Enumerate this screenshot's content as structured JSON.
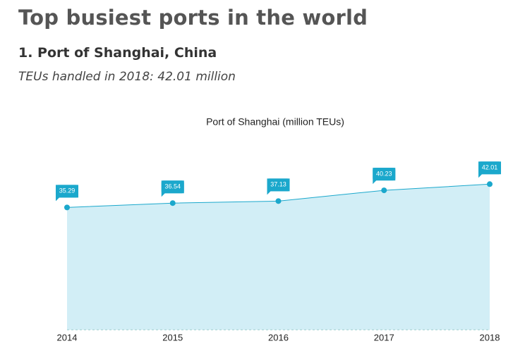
{
  "title": "Top busiest ports in the world",
  "heading": "1. Port of Shanghai, China",
  "subtitle": "TEUs handled in 2018: 42.01 million",
  "chart_data": {
    "type": "area",
    "title": "Port of Shanghai (million TEUs)",
    "categories": [
      "2014",
      "2015",
      "2016",
      "2017",
      "2018"
    ],
    "values": [
      35.29,
      36.54,
      37.13,
      40.23,
      42.01
    ],
    "color": "#1ba8cc",
    "fill": "#d2eef6",
    "ylim": [
      0,
      50
    ]
  }
}
